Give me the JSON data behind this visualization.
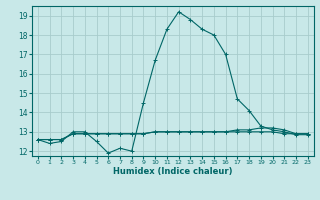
{
  "xlabel": "Humidex (Indice chaleur)",
  "ylabel": "",
  "bg_color": "#c8e8e8",
  "grid_color": "#a8cccc",
  "line_color": "#006666",
  "xlim": [
    -0.5,
    23.5
  ],
  "ylim": [
    11.75,
    19.5
  ],
  "yticks": [
    12,
    13,
    14,
    15,
    16,
    17,
    18,
    19
  ],
  "xticks": [
    0,
    1,
    2,
    3,
    4,
    5,
    6,
    7,
    8,
    9,
    10,
    11,
    12,
    13,
    14,
    15,
    16,
    17,
    18,
    19,
    20,
    21,
    22,
    23
  ],
  "series1_x": [
    0,
    1,
    2,
    3,
    4,
    5,
    6,
    7,
    8,
    9,
    10,
    11,
    12,
    13,
    14,
    15,
    16,
    17,
    18,
    19,
    20,
    21,
    22,
    23
  ],
  "series1_y": [
    12.6,
    12.4,
    12.5,
    13.0,
    13.0,
    12.5,
    11.9,
    12.15,
    12.0,
    14.5,
    16.7,
    18.3,
    19.2,
    18.8,
    18.3,
    18.0,
    17.0,
    14.7,
    14.1,
    13.3,
    13.1,
    13.0,
    12.85,
    12.85
  ],
  "series2_x": [
    0,
    1,
    2,
    3,
    4,
    5,
    6,
    7,
    8,
    9,
    10,
    11,
    12,
    13,
    14,
    15,
    16,
    17,
    18,
    19,
    20,
    21,
    22,
    23
  ],
  "series2_y": [
    12.6,
    12.6,
    12.6,
    12.9,
    12.9,
    12.9,
    12.9,
    12.9,
    12.9,
    12.9,
    13.0,
    13.0,
    13.0,
    13.0,
    13.0,
    13.0,
    13.0,
    13.0,
    13.0,
    13.0,
    13.0,
    12.9,
    12.9,
    12.9
  ],
  "series3_x": [
    0,
    1,
    2,
    3,
    4,
    5,
    6,
    7,
    8,
    9,
    10,
    11,
    12,
    13,
    14,
    15,
    16,
    17,
    18,
    19,
    20,
    21,
    22,
    23
  ],
  "series3_y": [
    12.6,
    12.6,
    12.6,
    12.9,
    12.9,
    12.9,
    12.9,
    12.9,
    12.9,
    12.9,
    13.0,
    13.0,
    13.0,
    13.0,
    13.0,
    13.0,
    13.0,
    13.1,
    13.1,
    13.2,
    13.2,
    13.1,
    12.9,
    12.9
  ]
}
